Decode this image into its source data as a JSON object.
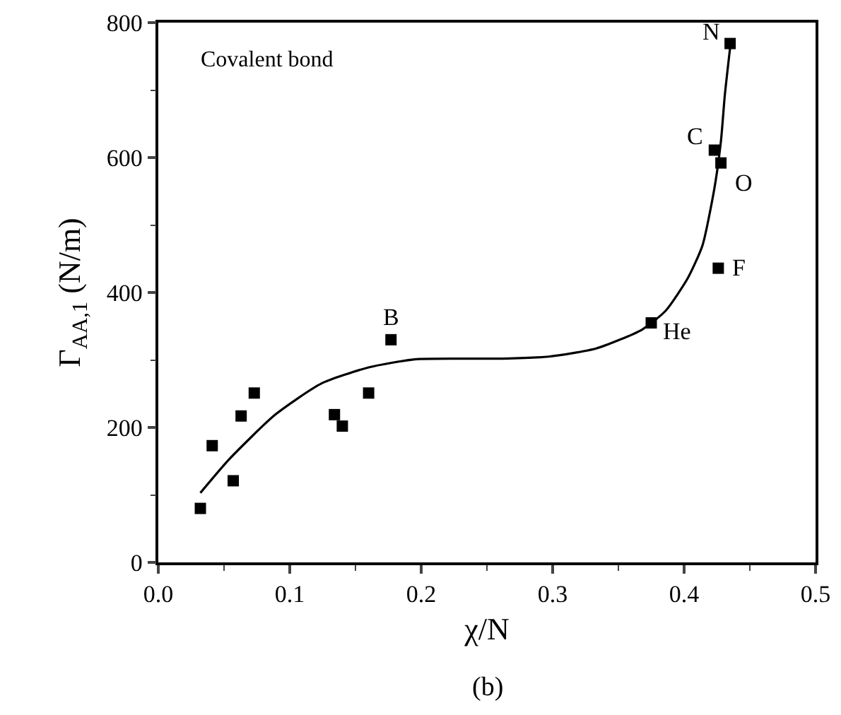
{
  "chart_data": {
    "type": "scatter",
    "xlabel": "χ/N",
    "ylabel": "Γ$_{AA,1}$ (N/m)",
    "xlim": [
      0,
      0.5
    ],
    "xticks": [
      {
        "value": 0,
        "label": "0.0"
      },
      0.1,
      0.2,
      0.3,
      0.4,
      0.5
    ],
    "ylim": [
      0,
      800
    ],
    "yticks": [
      0,
      200,
      400,
      600,
      800
    ],
    "grid": false,
    "series": [
      {
        "marker": "square",
        "color": "#000000",
        "x": [
          0.032,
          0.041,
          0.057,
          0.063,
          0.073,
          0.134,
          0.14,
          0.16,
          0.177,
          0.375,
          0.426,
          0.423,
          0.428,
          0.435
        ],
        "values": [
          80,
          173,
          121,
          217,
          251,
          219,
          202,
          251,
          330,
          355,
          436,
          611,
          592,
          769
        ]
      },
      {
        "type": "line",
        "marker": "none",
        "color": "#000000",
        "x": [
          0.032,
          0.054,
          0.089,
          0.124,
          0.16,
          0.195,
          0.23,
          0.262,
          0.297,
          0.333,
          0.368,
          0.386,
          0.403,
          0.414,
          0.423,
          0.428,
          0.431,
          0.435
        ],
        "values": [
          103,
          153,
          219,
          265,
          289,
          301,
          302,
          302,
          305,
          317,
          345,
          373,
          422,
          470,
          554,
          624,
          693,
          763
        ]
      }
    ],
    "annotations": [
      "Covalent bond",
      "(b)",
      {
        "text": "B",
        "x": 0.177,
        "y": 330
      },
      {
        "text": "He",
        "x": 0.375,
        "y": 355
      },
      {
        "text": "F",
        "x": 0.426,
        "y": 436
      },
      {
        "text": "C",
        "x": 0.423,
        "y": 611
      },
      {
        "text": "O",
        "x": 0.428,
        "y": 592
      },
      {
        "text": "N",
        "x": 0.435,
        "y": 769
      }
    ]
  }
}
